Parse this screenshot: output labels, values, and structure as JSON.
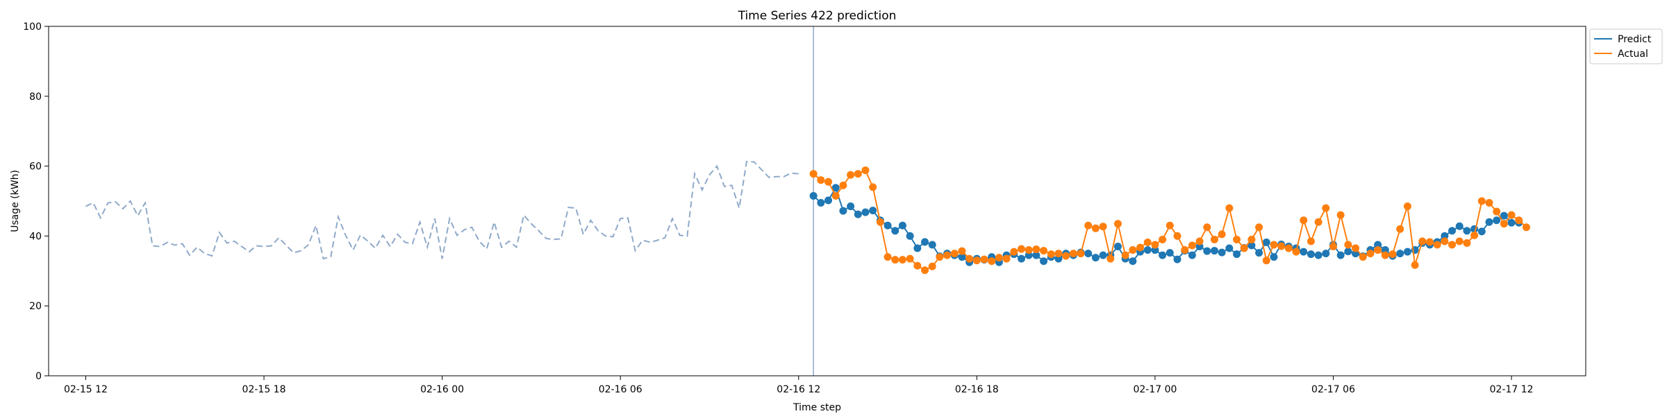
{
  "chart_data": {
    "type": "line",
    "title": "Time Series 422 prediction",
    "xlabel": "Time step",
    "ylabel": "Usage (kWh)",
    "ylim": [
      0,
      100
    ],
    "xlim": [
      "2026-02-15T10:45",
      "2026-02-17T14:30"
    ],
    "yticks": [
      0,
      20,
      40,
      60,
      80,
      100
    ],
    "xticks": [
      "2026-02-15T12:00",
      "2026-02-15T18:00",
      "2026-02-16T00:00",
      "2026-02-16T06:00",
      "2026-02-16T12:00",
      "2026-02-16T18:00",
      "2026-02-17T00:00",
      "2026-02-17T06:00",
      "2026-02-17T12:00"
    ],
    "xtick_labels": [
      "02-15 12",
      "02-15 18",
      "02-16 00",
      "02-16 06",
      "02-16 12",
      "02-16 18",
      "02-17 00",
      "02-17 06",
      "02-17 12"
    ],
    "grid": false,
    "legend_position": "outside top-right",
    "vline_at": "2026-02-16T12:30",
    "history": {
      "start": "2026-02-15T12:00",
      "step_minutes": 15,
      "color": "#8fa9c9",
      "values": [
        48.5,
        49.5,
        45.2,
        49.5,
        49.8,
        47.8,
        50,
        45.8,
        49.5,
        37.2,
        37,
        38.2,
        37.4,
        37.8,
        34.5,
        36.8,
        35,
        34.3,
        41,
        38,
        38.5,
        37,
        35.5,
        37.2,
        37,
        37.2,
        39.5,
        37.3,
        35.2,
        35.8,
        37.5,
        43,
        33.5,
        34.1,
        45.5,
        40.2,
        36,
        40.3,
        38.5,
        36.5,
        40.2,
        37,
        40.5,
        38.2,
        37.8,
        44,
        36.8,
        45,
        33.5,
        45,
        40.2,
        41.8,
        42.5,
        38.5,
        36.3,
        44,
        36.8,
        38.5,
        36.8,
        46,
        43.5,
        41.5,
        39.3,
        39,
        39.2,
        48.2,
        48,
        40.5,
        44.5,
        41.5,
        40,
        39.8,
        45,
        45.2,
        35.8,
        38.8,
        38.2,
        38.8,
        39.5,
        45,
        40.2,
        40,
        57.8,
        53.2,
        57.5,
        60,
        54.2,
        54.5,
        48,
        61.3,
        61.2,
        59,
        56.8,
        57,
        57,
        58,
        57.8
      ]
    },
    "series": [
      {
        "name": "Predict",
        "color": "#1f77b4",
        "start": "2026-02-16T12:30",
        "step_minutes": 15,
        "values": [
          51.5,
          49.5,
          50.2,
          53.8,
          47.2,
          48.5,
          46.2,
          46.8,
          47.3,
          44.5,
          43,
          41.5,
          43,
          40,
          36.5,
          38.3,
          37.5,
          34.2,
          35,
          34.5,
          34,
          32.5,
          33.5,
          33.2,
          34,
          32.5,
          34.5,
          34.8,
          33.5,
          34.5,
          34.5,
          32.8,
          34,
          33.5,
          35,
          34.5,
          35.3,
          35,
          33.8,
          34.5,
          34.5,
          37,
          33.5,
          32.8,
          35.5,
          36,
          36,
          34.5,
          35.2,
          33.3,
          35.8,
          34.5,
          37,
          35.7,
          35.8,
          35.3,
          36.5,
          34.8,
          36.6,
          37.3,
          35.2,
          38.2,
          34,
          37.6,
          37,
          36.5,
          35.5,
          34.8,
          34.5,
          35,
          37.5,
          34.5,
          35.6,
          35,
          34.2,
          36,
          37.5,
          36,
          34.3,
          35,
          35.5,
          36,
          38,
          37.5,
          38.3,
          40,
          41.5,
          42.8,
          41.5,
          42,
          41.3,
          44,
          44.5,
          45.8,
          43.8,
          43.8
        ]
      },
      {
        "name": "Actual",
        "color": "#ff7f0e",
        "start": "2026-02-16T12:30",
        "step_minutes": 15,
        "values": [
          57.8,
          56,
          55.5,
          51.5,
          54.5,
          57.5,
          57.8,
          58.8,
          54,
          44,
          34,
          33.2,
          33.2,
          33.5,
          31.5,
          30.2,
          31.3,
          34,
          34.5,
          35,
          35.7,
          33.5,
          33,
          33.3,
          32.8,
          33.8,
          33.5,
          35.5,
          36.3,
          36,
          36.2,
          35.8,
          34.8,
          35,
          34.3,
          35,
          35,
          43,
          42.2,
          42.7,
          33.5,
          43.5,
          34.5,
          36,
          36.7,
          38.2,
          37.5,
          39,
          43,
          40,
          36,
          37.3,
          38.5,
          42.5,
          39,
          40.5,
          48,
          39,
          36.5,
          39,
          42.5,
          33,
          37.5,
          37.1,
          36.5,
          35.5,
          44.5,
          38.5,
          44,
          48,
          37,
          46,
          37.5,
          36.5,
          34,
          35,
          36,
          34.5,
          34.8,
          42,
          48.5,
          31.7,
          38.5,
          38.3,
          37.5,
          38.5,
          37.5,
          38.5,
          38,
          40.2,
          50,
          49.5,
          47,
          43.5,
          46,
          44.5,
          42.5
        ]
      }
    ]
  }
}
